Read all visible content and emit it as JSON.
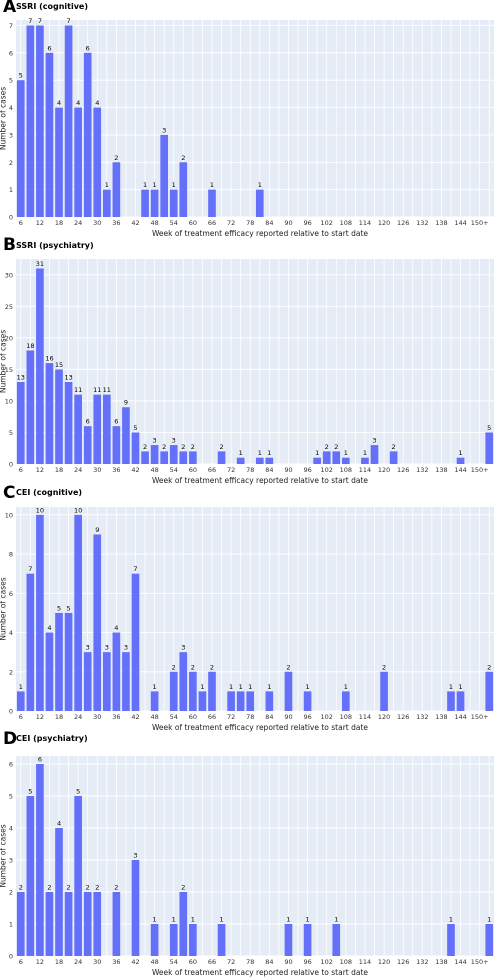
{
  "chart_data": [
    {
      "type": "bar",
      "panel_letter": "A",
      "title": "SSRI (cognitive)",
      "xlabel": "Week of treatment efficacy reported relative to start date",
      "ylabel": "Number of cases",
      "ylim": [
        0,
        7.2
      ],
      "yticks": [
        0,
        1,
        2,
        3,
        4,
        5,
        6,
        7
      ],
      "tick_labels": [
        "6",
        "12",
        "18",
        "24",
        "30",
        "36",
        "42",
        "48",
        "54",
        "60",
        "66",
        "72",
        "78",
        "84",
        "90",
        "96",
        "102",
        "108",
        "114",
        "120",
        "126",
        "132",
        "138",
        "144",
        "150+"
      ],
      "values": [
        5,
        7,
        7,
        6,
        4,
        7,
        4,
        6,
        4,
        1,
        2,
        0,
        0,
        1,
        1,
        3,
        1,
        2,
        0,
        0,
        1,
        0,
        0,
        0,
        0,
        1,
        0,
        0,
        0,
        0,
        0,
        0,
        0,
        0,
        0,
        0,
        0,
        0,
        0,
        0,
        0,
        0,
        0,
        0,
        0,
        0,
        0,
        0,
        0,
        0
      ],
      "bar_color": "#6470f9",
      "background": "#e5ecf6",
      "grid": true
    },
    {
      "type": "bar",
      "panel_letter": "B",
      "title": "SSRI (psychiatry)",
      "xlabel": "Week of treatment efficacy reported relative to start date",
      "ylabel": "Number of cases",
      "ylim": [
        0,
        32.5
      ],
      "yticks": [
        0,
        5,
        10,
        15,
        20,
        25,
        30
      ],
      "tick_labels": [
        "6",
        "12",
        "18",
        "24",
        "30",
        "36",
        "42",
        "48",
        "54",
        "60",
        "66",
        "72",
        "78",
        "84",
        "90",
        "96",
        "102",
        "108",
        "114",
        "120",
        "126",
        "132",
        "138",
        "144",
        "150+"
      ],
      "values": [
        13,
        18,
        31,
        16,
        15,
        13,
        11,
        6,
        11,
        11,
        6,
        9,
        5,
        2,
        3,
        2,
        3,
        2,
        2,
        0,
        0,
        2,
        0,
        1,
        0,
        1,
        1,
        0,
        0,
        0,
        0,
        1,
        2,
        2,
        1,
        0,
        1,
        3,
        0,
        2,
        0,
        0,
        0,
        0,
        0,
        0,
        1,
        0,
        0,
        5
      ],
      "bar_color": "#6470f9",
      "background": "#e5ecf6",
      "grid": true
    },
    {
      "type": "bar",
      "panel_letter": "C",
      "title": "CEI (cognitive)",
      "xlabel": "Week of treatment efficacy reported relative to start date",
      "ylabel": "Number of cases",
      "ylim": [
        0,
        10.4
      ],
      "yticks": [
        0,
        2,
        4,
        6,
        8,
        10
      ],
      "tick_labels": [
        "6",
        "12",
        "18",
        "24",
        "30",
        "36",
        "42",
        "48",
        "54",
        "60",
        "66",
        "72",
        "78",
        "84",
        "90",
        "96",
        "102",
        "108",
        "114",
        "120",
        "126",
        "132",
        "138",
        "144",
        "150+"
      ],
      "values": [
        1,
        7,
        10,
        4,
        5,
        5,
        10,
        3,
        9,
        3,
        4,
        3,
        7,
        0,
        1,
        0,
        2,
        3,
        2,
        1,
        2,
        0,
        1,
        1,
        1,
        0,
        1,
        0,
        2,
        0,
        1,
        0,
        0,
        0,
        1,
        0,
        0,
        0,
        2,
        0,
        0,
        0,
        0,
        0,
        0,
        1,
        1,
        0,
        0,
        2
      ],
      "bar_color": "#6470f9",
      "background": "#e5ecf6",
      "grid": true
    },
    {
      "type": "bar",
      "panel_letter": "D",
      "title": "CEI (psychiatry)",
      "xlabel": "Week of treatment efficacy reported relative to start date",
      "ylabel": "Number of cases",
      "ylim": [
        0,
        6.25
      ],
      "yticks": [
        0,
        1,
        2,
        3,
        4,
        5,
        6
      ],
      "tick_labels": [
        "6",
        "12",
        "18",
        "24",
        "30",
        "36",
        "42",
        "48",
        "54",
        "60",
        "66",
        "72",
        "78",
        "84",
        "90",
        "96",
        "102",
        "108",
        "114",
        "120",
        "126",
        "132",
        "138",
        "144",
        "150+"
      ],
      "values": [
        2,
        5,
        6,
        2,
        4,
        2,
        5,
        2,
        2,
        0,
        2,
        0,
        3,
        0,
        1,
        0,
        1,
        2,
        1,
        0,
        0,
        1,
        0,
        0,
        0,
        0,
        0,
        0,
        1,
        0,
        1,
        0,
        0,
        1,
        0,
        0,
        0,
        0,
        0,
        0,
        0,
        0,
        0,
        0,
        0,
        1,
        0,
        0,
        0,
        1
      ],
      "bar_color": "#6470f9",
      "background": "#e5ecf6",
      "grid": true
    }
  ]
}
